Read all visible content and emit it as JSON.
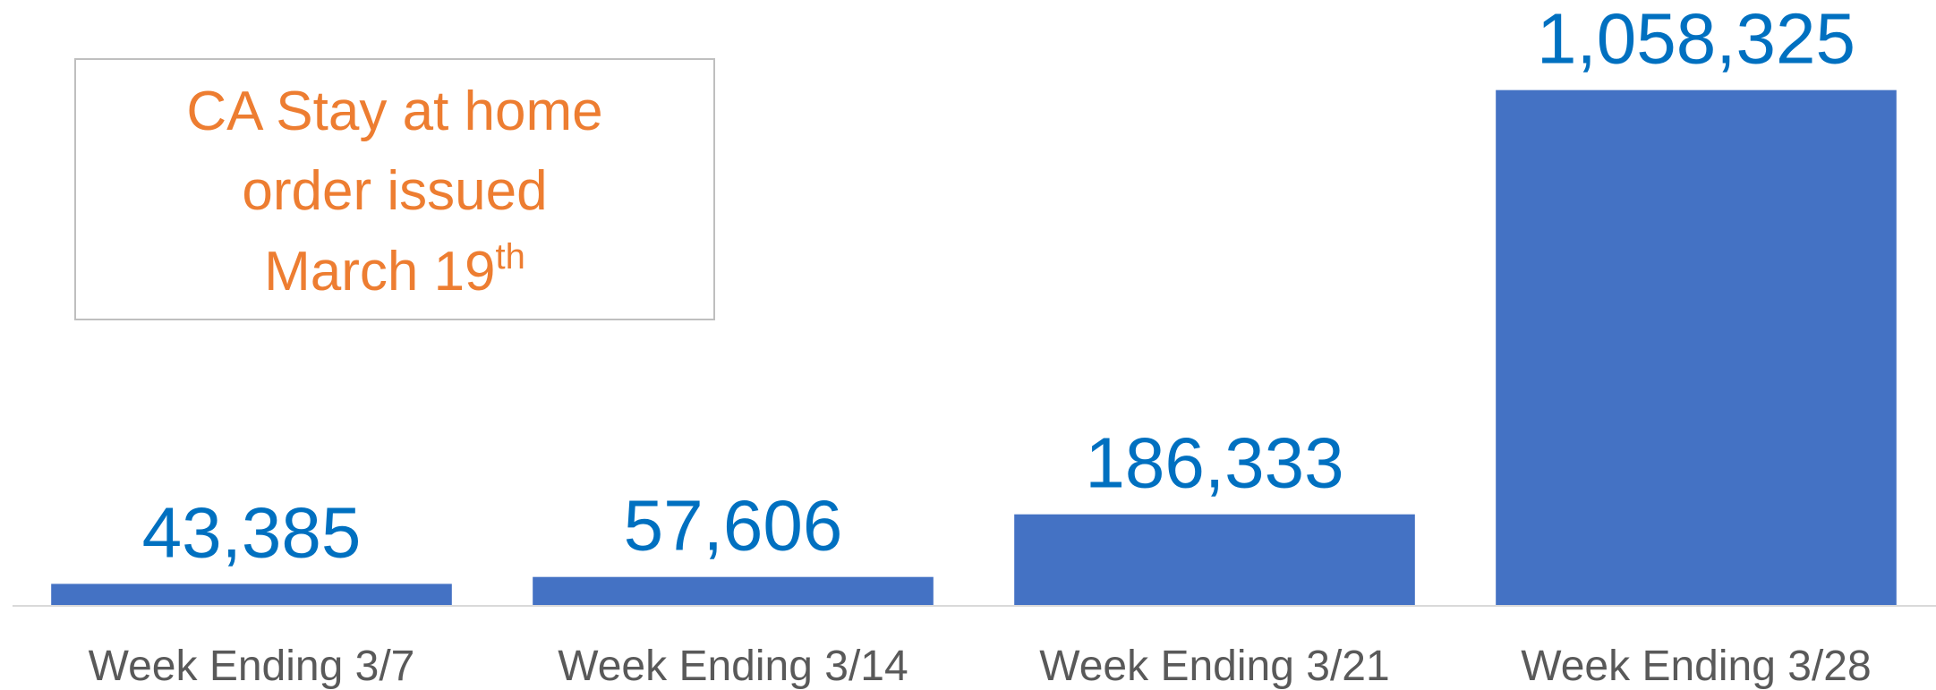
{
  "chart_data": {
    "type": "bar",
    "categories": [
      "Week Ending 3/7",
      "Week Ending 3/14",
      "Week Ending 3/21",
      "Week Ending 3/28"
    ],
    "values": [
      43385,
      57606,
      186333,
      1058325
    ],
    "value_labels": [
      "43,385",
      "57,606",
      "186,333",
      "1,058,325"
    ],
    "color": "#4472c4",
    "ylim": [
      0,
      1100000
    ],
    "annotation": {
      "lines": [
        "CA Stay at home",
        "order issued",
        "March 19"
      ],
      "superscript": "th"
    }
  }
}
